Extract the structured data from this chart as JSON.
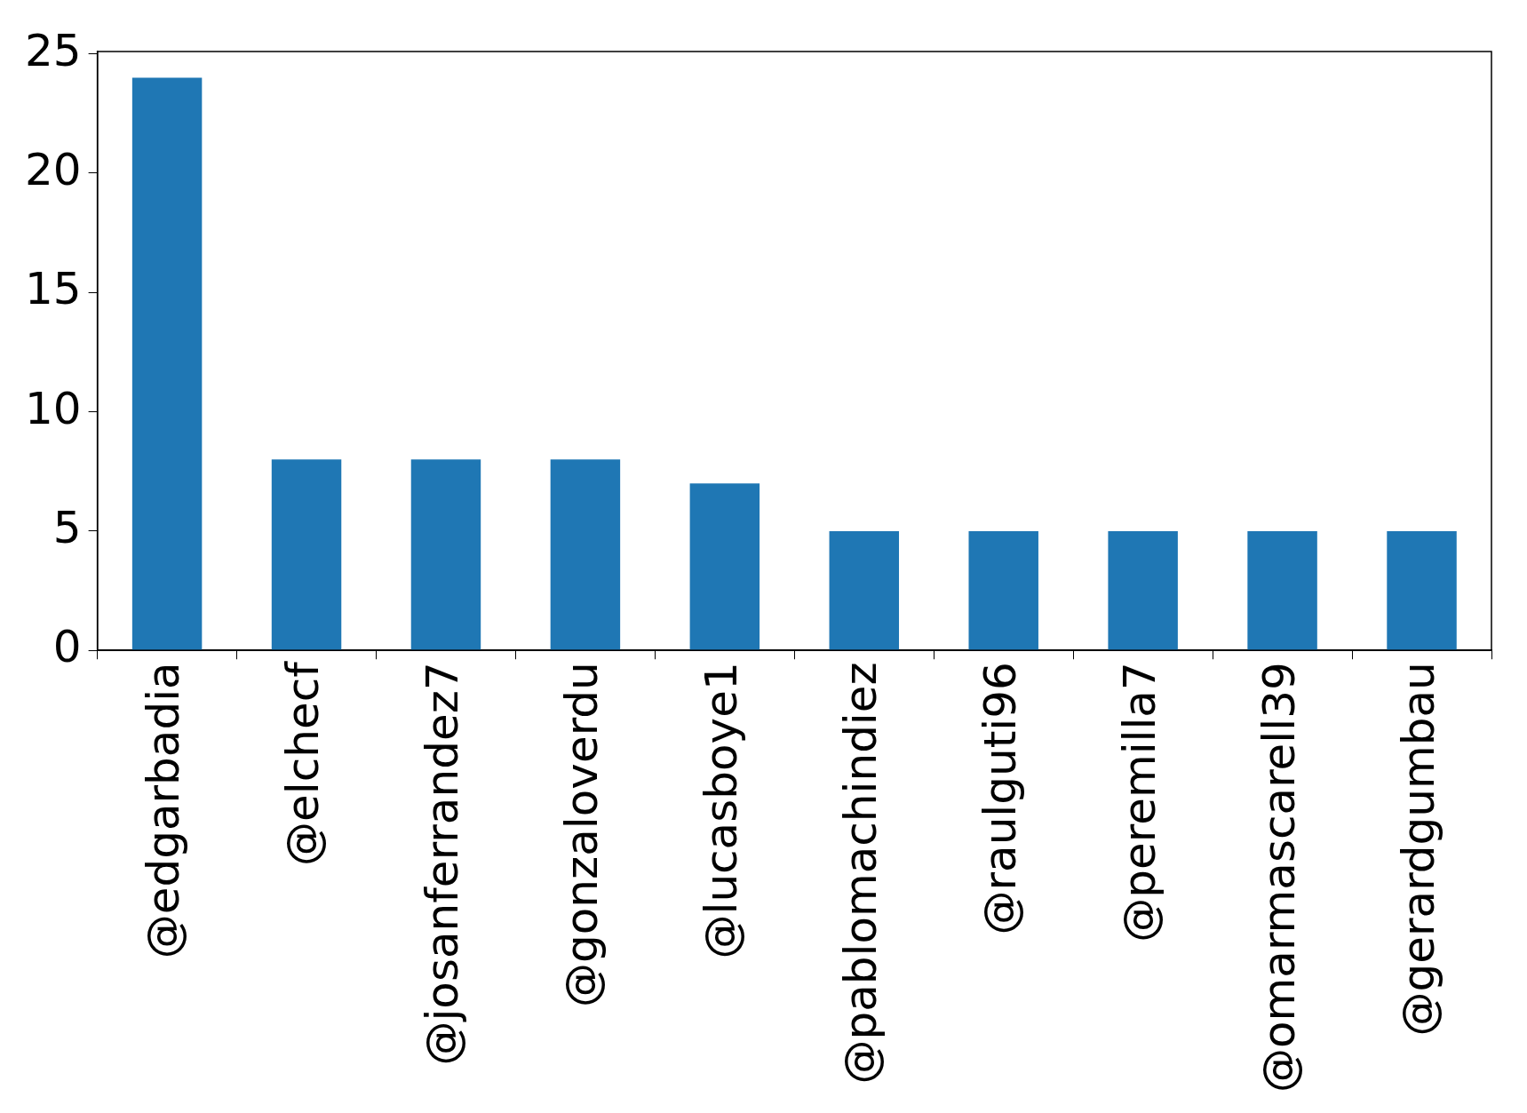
{
  "chart_data": {
    "type": "bar",
    "categories": [
      "@edgarbadia",
      "@elchecf",
      "@josanferrandez7",
      "@gonzaloverdu",
      "@lucasboye1",
      "@pablomachindiez",
      "@raulguti96",
      "@peremilla7",
      "@omarmascarell39",
      "@gerardgumbau"
    ],
    "values": [
      24,
      8,
      8,
      8,
      7,
      5,
      5,
      5,
      5,
      5
    ],
    "color": "#1f77b4",
    "ylim": [
      0,
      25.1
    ],
    "yticks": [
      0,
      5,
      10,
      15,
      20,
      25
    ],
    "grid": false,
    "legend": false
  }
}
